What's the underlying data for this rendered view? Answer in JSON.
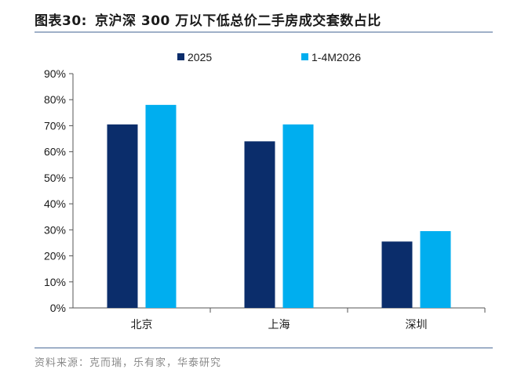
{
  "header": {
    "figure_label": "图表30:",
    "title": "京沪深 300 万以下低总价二手房成交套数占比"
  },
  "footer": {
    "source": "资料来源：克而瑞，乐有家，华泰研究"
  },
  "colors": {
    "series_2025": "#0b2d6b",
    "series_2026": "#00aeef",
    "rule": "#9fb0c8"
  },
  "chart_data": {
    "type": "bar",
    "title": "",
    "xlabel": "",
    "ylabel": "",
    "categories": [
      "北京",
      "上海",
      "深圳"
    ],
    "series": [
      {
        "name": "2025",
        "values": [
          70.5,
          64,
          25.5
        ]
      },
      {
        "name": "1-4M2026",
        "values": [
          78,
          70.5,
          29.5
        ]
      }
    ],
    "ylim": [
      0,
      90
    ],
    "yticks": [
      "0%",
      "10%",
      "20%",
      "30%",
      "40%",
      "50%",
      "60%",
      "70%",
      "80%",
      "90%"
    ],
    "legend_position": "top-center",
    "grid": false
  }
}
